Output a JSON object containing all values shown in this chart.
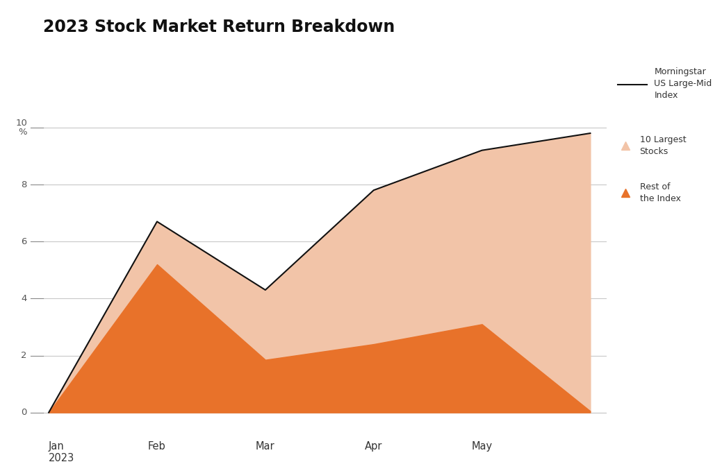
{
  "title": "2023 Stock Market Return Breakdown",
  "title_fontsize": 17,
  "background_color": "#ffffff",
  "x_positions": [
    0,
    1,
    2,
    3,
    4,
    5
  ],
  "x_labels": [
    "Jan\n2023",
    "Feb",
    "Mar",
    "Apr",
    "May",
    ""
  ],
  "yticks": [
    0,
    2,
    4,
    6,
    8,
    10
  ],
  "ylim": [
    -0.4,
    11.5
  ],
  "xlim": [
    -0.05,
    5.15
  ],
  "total_index": [
    0.0,
    6.7,
    4.3,
    7.8,
    9.2,
    9.8
  ],
  "rest_of_index": [
    0.0,
    5.2,
    1.85,
    2.4,
    3.1,
    0.05
  ],
  "color_10_largest": "#f2c4a8",
  "color_rest": "#e8722a",
  "color_line": "#111111",
  "grid_color": "#c8c8c8",
  "tick_line_color": "#888888"
}
